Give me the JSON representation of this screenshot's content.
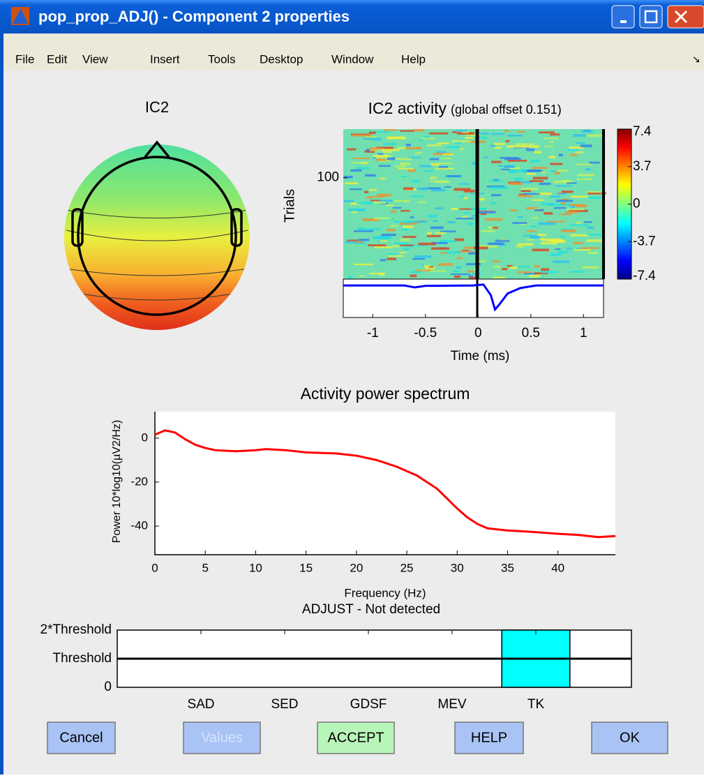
{
  "window": {
    "title": "pop_prop_ADJ() - Component 2 properties"
  },
  "menu": [
    "File",
    "Edit",
    "View",
    "Insert",
    "Tools",
    "Desktop",
    "Window",
    "Help"
  ],
  "topoplot": {
    "title": "IC2"
  },
  "chart_data": [
    {
      "type": "erpimage",
      "title": "IC2 activity",
      "subtitle": "(global offset 0.151)",
      "ylabel": "Trials",
      "xlabel": "Time (ms)",
      "xlim": [
        -1.28,
        1.19
      ],
      "xticks": [
        -1,
        -0.5,
        0,
        0.5,
        1
      ],
      "ylim": [
        0,
        148
      ],
      "yticks": [
        100
      ],
      "colorbar_lim": [
        -7.4,
        7.4
      ],
      "colorbar_ticks": [
        7.4,
        3.7,
        0,
        -3.7,
        -7.4
      ],
      "trace": {
        "color": "#0000ff",
        "ylim": [
          -10,
          2
        ],
        "x": [
          -1.28,
          -0.7,
          -0.6,
          -0.5,
          -0.05,
          0.05,
          0.12,
          0.16,
          0.2,
          0.28,
          0.4,
          0.55,
          1.19
        ],
        "values": [
          0,
          0,
          -0.6,
          -0.1,
          0,
          0.3,
          -3,
          -7.5,
          -6,
          -2.5,
          -0.8,
          0,
          0
        ]
      }
    },
    {
      "type": "line",
      "title": "Activity power spectrum",
      "ylabel": "Power 10*log10(µV2/Hz)",
      "xlabel": "Frequency (Hz)",
      "xlim": [
        0,
        45.7
      ],
      "ylim": [
        -53,
        12
      ],
      "xticks": [
        0,
        5,
        10,
        15,
        20,
        25,
        30,
        35,
        40
      ],
      "yticks": [
        0,
        -20,
        -40
      ],
      "color": "#ff0000",
      "x": [
        0,
        1,
        2,
        3,
        4,
        5,
        6,
        8,
        10,
        11,
        13,
        15,
        18,
        20,
        22,
        24,
        26,
        28,
        30,
        31,
        32,
        33,
        35,
        37,
        40,
        42,
        44,
        45.7
      ],
      "values": [
        1.5,
        3.5,
        2.5,
        -0.5,
        -3,
        -4.5,
        -5.5,
        -6,
        -5.5,
        -5,
        -5.5,
        -6.5,
        -7,
        -8,
        -10,
        -13,
        -17,
        -23,
        -32,
        -36,
        -39,
        -41,
        -42,
        -42.5,
        -43.5,
        -44,
        -45,
        -44.5
      ]
    },
    {
      "type": "bar",
      "title": "ADJUST - Not detected",
      "categories": [
        "SAD",
        "SED",
        "GDSF",
        "MEV",
        "TK"
      ],
      "values": [
        0,
        0,
        0,
        0,
        2
      ],
      "color": "#00ffff",
      "ylim": [
        0,
        2
      ],
      "yticks": [
        0,
        {
          "value": 1,
          "label": "Threshold"
        },
        {
          "value": 2,
          "label": "2*Threshold"
        }
      ]
    }
  ],
  "buttons": [
    "Cancel",
    "Values",
    "ACCEPT",
    "HELP",
    "OK"
  ]
}
